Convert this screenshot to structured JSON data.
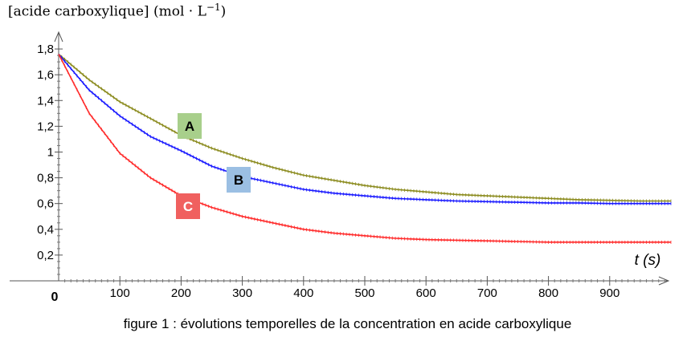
{
  "chart_data": {
    "type": "line",
    "title": "",
    "ylabel": "[acide carboxylique] (mol · L",
    "ylabel_exponent": "−1",
    "ylabel_close": ")",
    "xlabel": "t (s)",
    "origin_label": "0",
    "caption": "figure 1 : évolutions temporelles de la concentration en acide carboxylique",
    "xlim": [
      0,
      1000
    ],
    "ylim": [
      0,
      1.9
    ],
    "x_ticks": [
      100,
      200,
      300,
      400,
      500,
      600,
      700,
      800,
      900
    ],
    "x_tick_labels": [
      "100",
      "200",
      "300",
      "400",
      "500",
      "600",
      "700",
      "800",
      "900"
    ],
    "y_ticks": [
      0.2,
      0.4,
      0.6,
      0.8,
      1.0,
      1.2,
      1.4,
      1.6,
      1.8
    ],
    "y_tick_labels": [
      "0,2",
      "0,4",
      "0,6",
      "0,8",
      "1",
      "1,2",
      "1,4",
      "1,6",
      "1,8"
    ],
    "grid": false,
    "series": [
      {
        "name": "A",
        "color": "#8b8b1e",
        "badge_color": "#a8cf8b",
        "badge_text_color": "#000000",
        "x": [
          0,
          50,
          100,
          150,
          200,
          250,
          300,
          350,
          400,
          450,
          500,
          550,
          600,
          650,
          700,
          750,
          800,
          850,
          900,
          950,
          1000
        ],
        "values": [
          1.76,
          1.56,
          1.39,
          1.26,
          1.13,
          1.03,
          0.95,
          0.88,
          0.82,
          0.78,
          0.74,
          0.71,
          0.69,
          0.67,
          0.66,
          0.65,
          0.64,
          0.63,
          0.625,
          0.62,
          0.62
        ]
      },
      {
        "name": "B",
        "color": "#1a1aff",
        "badge_color": "#9bbfe3",
        "badge_text_color": "#000000",
        "x": [
          0,
          50,
          100,
          150,
          200,
          250,
          300,
          350,
          400,
          450,
          500,
          550,
          600,
          650,
          700,
          750,
          800,
          850,
          900,
          950,
          1000
        ],
        "values": [
          1.76,
          1.48,
          1.28,
          1.12,
          1.01,
          0.89,
          0.81,
          0.76,
          0.71,
          0.68,
          0.66,
          0.64,
          0.63,
          0.62,
          0.615,
          0.61,
          0.605,
          0.605,
          0.6,
          0.6,
          0.6
        ]
      },
      {
        "name": "C",
        "color": "#ff2a2a",
        "badge_color": "#f0605f",
        "badge_text_color": "#ffffff",
        "x": [
          0,
          50,
          100,
          150,
          200,
          250,
          300,
          350,
          400,
          450,
          500,
          550,
          600,
          650,
          700,
          750,
          800,
          850,
          900,
          950,
          1000
        ],
        "values": [
          1.76,
          1.3,
          0.99,
          0.8,
          0.66,
          0.57,
          0.5,
          0.45,
          0.4,
          0.37,
          0.35,
          0.33,
          0.32,
          0.315,
          0.31,
          0.305,
          0.3,
          0.3,
          0.3,
          0.3,
          0.3
        ]
      }
    ]
  }
}
